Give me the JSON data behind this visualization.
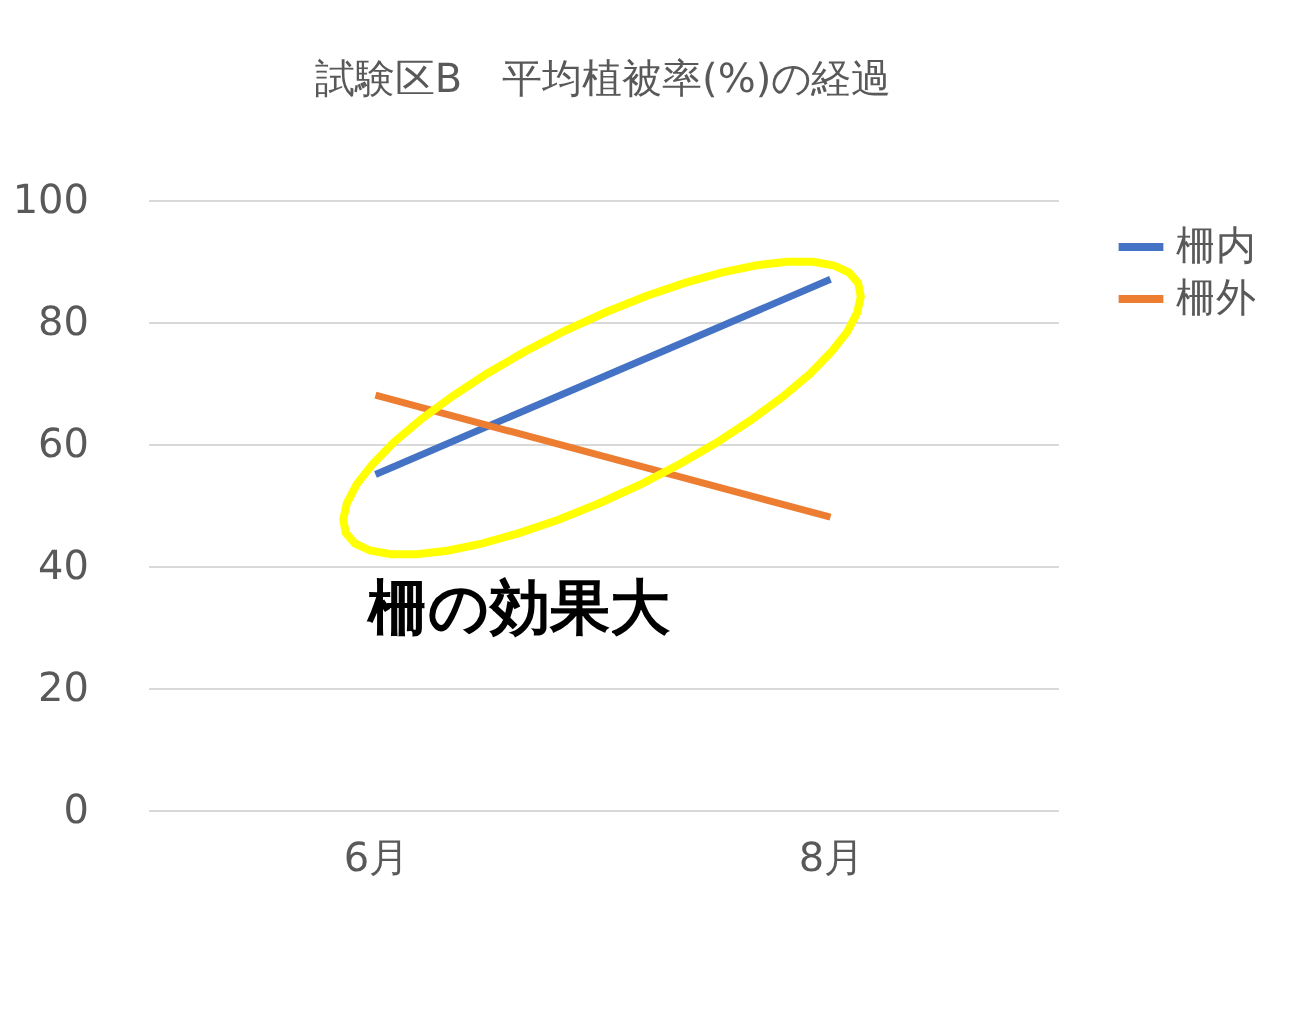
{
  "chart_data": {
    "type": "line",
    "title": "試験区B　平均植被率(%)の経過",
    "categories": [
      "6月",
      "8月"
    ],
    "series": [
      {
        "name": "柵内",
        "color": "#4472c4",
        "values": [
          55,
          87
        ]
      },
      {
        "name": "柵外",
        "color": "#ed7d31",
        "values": [
          68,
          48
        ]
      }
    ],
    "ylim": [
      0,
      100
    ],
    "yticks": [
      0,
      20,
      40,
      60,
      80,
      100
    ],
    "grid": "y",
    "legend": "right",
    "marker": "none",
    "line_style": "solid",
    "annotations": [
      "柵の効果大"
    ]
  }
}
